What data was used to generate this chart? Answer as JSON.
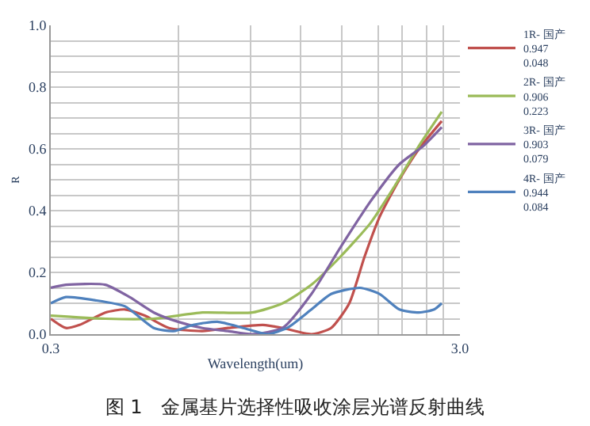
{
  "chart_data": {
    "type": "line",
    "title": "图 1　金属基片选择性吸收涂层光谱反射曲线",
    "xlabel": "Wavelength(um)",
    "ylabel": "R",
    "xlim": [
      0.3,
      3.0
    ],
    "xticks": [
      {
        "value": 0.3,
        "label": "0.3"
      },
      {
        "value": 1.14,
        "label": null
      },
      {
        "value": 1.62,
        "label": null
      },
      {
        "value": 1.95,
        "label": null
      },
      {
        "value": 2.22,
        "label": null
      },
      {
        "value": 2.46,
        "label": null
      },
      {
        "value": 2.62,
        "label": null
      },
      {
        "value": 2.78,
        "label": null
      },
      {
        "value": 2.89,
        "label": null
      },
      {
        "value": 3.0,
        "label": "3.0"
      }
    ],
    "ylim": [
      0,
      1.0
    ],
    "yticks": [
      {
        "value": 0,
        "label": "0.0"
      },
      {
        "value": 0.05,
        "label": null
      },
      {
        "value": 0.1,
        "label": null
      },
      {
        "value": 0.15,
        "label": null
      },
      {
        "value": 0.2,
        "label": "0.2"
      },
      {
        "value": 0.25,
        "label": null
      },
      {
        "value": 0.3,
        "label": null
      },
      {
        "value": 0.35,
        "label": null
      },
      {
        "value": 0.4,
        "label": "0.4"
      },
      {
        "value": 0.45,
        "label": null
      },
      {
        "value": 0.5,
        "label": null
      },
      {
        "value": 0.55,
        "label": null
      },
      {
        "value": 0.6,
        "label": "0.6"
      },
      {
        "value": 0.65,
        "label": null
      },
      {
        "value": 0.7,
        "label": null
      },
      {
        "value": 0.75,
        "label": null
      },
      {
        "value": 0.8,
        "label": "0.8"
      },
      {
        "value": 0.85,
        "label": null
      },
      {
        "value": 0.9,
        "label": null
      },
      {
        "value": 0.95,
        "label": null
      },
      {
        "value": 1.0,
        "label": "1.0"
      }
    ],
    "grid": true,
    "legend": "right",
    "marker": "none",
    "line_style": "solid",
    "series": [
      {
        "name": "1R- 国产\n0.947\n0.048",
        "color": "#c0504d",
        "x": [
          0.3,
          0.4,
          0.49,
          0.66,
          0.79,
          0.92,
          1.08,
          1.3,
          1.47,
          1.7,
          1.83,
          2.02,
          2.15,
          2.27,
          2.37,
          2.47,
          2.6,
          2.73,
          2.88
        ],
        "values": [
          0.05,
          0.02,
          0.03,
          0.07,
          0.08,
          0.06,
          0.02,
          0.01,
          0.02,
          0.03,
          0.02,
          0.0,
          0.02,
          0.1,
          0.25,
          0.38,
          0.5,
          0.6,
          0.69
        ]
      },
      {
        "name": "2R- 国产\n0.906\n0.223",
        "color": "#9bbb59",
        "x": [
          0.3,
          0.66,
          0.98,
          1.3,
          1.63,
          1.83,
          2.02,
          2.21,
          2.41,
          2.57,
          2.73,
          2.88
        ],
        "values": [
          0.06,
          0.05,
          0.05,
          0.07,
          0.07,
          0.1,
          0.16,
          0.25,
          0.36,
          0.48,
          0.61,
          0.72
        ]
      },
      {
        "name": "3R- 国产\n0.903\n0.079",
        "color": "#8064a2",
        "x": [
          0.3,
          0.4,
          0.66,
          0.82,
          0.98,
          1.14,
          1.3,
          1.47,
          1.63,
          1.83,
          2.02,
          2.21,
          2.41,
          2.6,
          2.76,
          2.88
        ],
        "values": [
          0.15,
          0.16,
          0.16,
          0.12,
          0.07,
          0.04,
          0.02,
          0.01,
          0.0,
          0.02,
          0.13,
          0.28,
          0.43,
          0.55,
          0.61,
          0.67
        ]
      },
      {
        "name": "4R- 国产\n0.944\n0.084",
        "color": "#4f81bd",
        "x": [
          0.3,
          0.4,
          0.59,
          0.79,
          0.98,
          1.11,
          1.24,
          1.4,
          1.57,
          1.73,
          1.86,
          2.02,
          2.15,
          2.34,
          2.47,
          2.6,
          2.73,
          2.83,
          2.88
        ],
        "values": [
          0.1,
          0.12,
          0.11,
          0.09,
          0.02,
          0.01,
          0.03,
          0.04,
          0.02,
          0.0,
          0.02,
          0.08,
          0.13,
          0.15,
          0.13,
          0.08,
          0.07,
          0.08,
          0.1
        ]
      }
    ]
  }
}
